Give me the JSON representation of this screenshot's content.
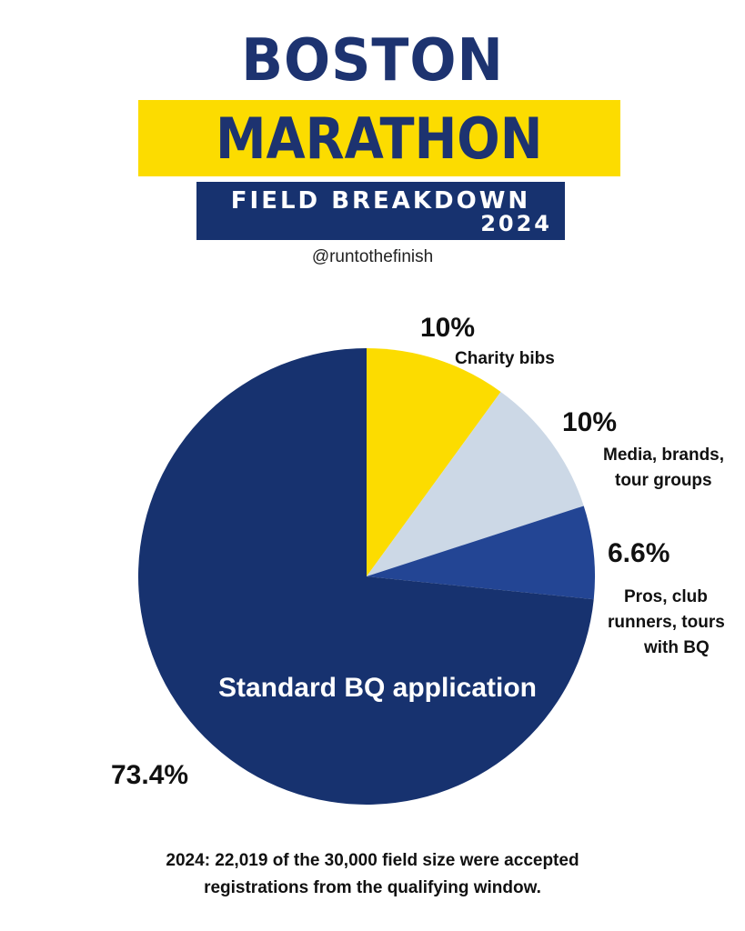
{
  "header": {
    "title_line1": "BOSTON",
    "title_line2": "MARATHON",
    "subtitle_line1": "FIELD BREAKDOWN",
    "subtitle_line2": "2024",
    "handle": "@runtothefinish"
  },
  "colors": {
    "navy": "#17326f",
    "yellow": "#fcdc00",
    "light_gray_blue": "#ccd8e6",
    "medium_blue": "#234594",
    "white": "#ffffff"
  },
  "chart_data": {
    "type": "pie",
    "slices": [
      {
        "name": "Charity bibs",
        "value": 10,
        "label": "10%",
        "color": "#fcdc00"
      },
      {
        "name": "Media, brands, tour groups",
        "value": 10,
        "label": "10%",
        "color": "#ccd8e6"
      },
      {
        "name": "Pros, club runners, tours with BQ",
        "value": 6.6,
        "label": "6.6%",
        "color": "#234594"
      },
      {
        "name": "Standard BQ application",
        "value": 73.4,
        "label": "73.4%",
        "color": "#17326f"
      }
    ],
    "start_angle": "12 o'clock",
    "direction": "clockwise",
    "legend": "none (direct labels)"
  },
  "labels": {
    "charity_pct": "10%",
    "charity_name": "Charity bibs",
    "media_pct": "10%",
    "media_name_line1": "Media, brands,",
    "media_name_line2": "tour groups",
    "pros_pct": "6.6%",
    "pros_name_line1": "Pros, club",
    "pros_name_line2": "runners, tours",
    "pros_name_line3": "with BQ",
    "standard_name": "Standard BQ application",
    "standard_pct": "73.4%"
  },
  "footnote": {
    "line1": "2024: 22,019 of the 30,000 field size were accepted",
    "line2": "registrations from the qualifying window."
  }
}
